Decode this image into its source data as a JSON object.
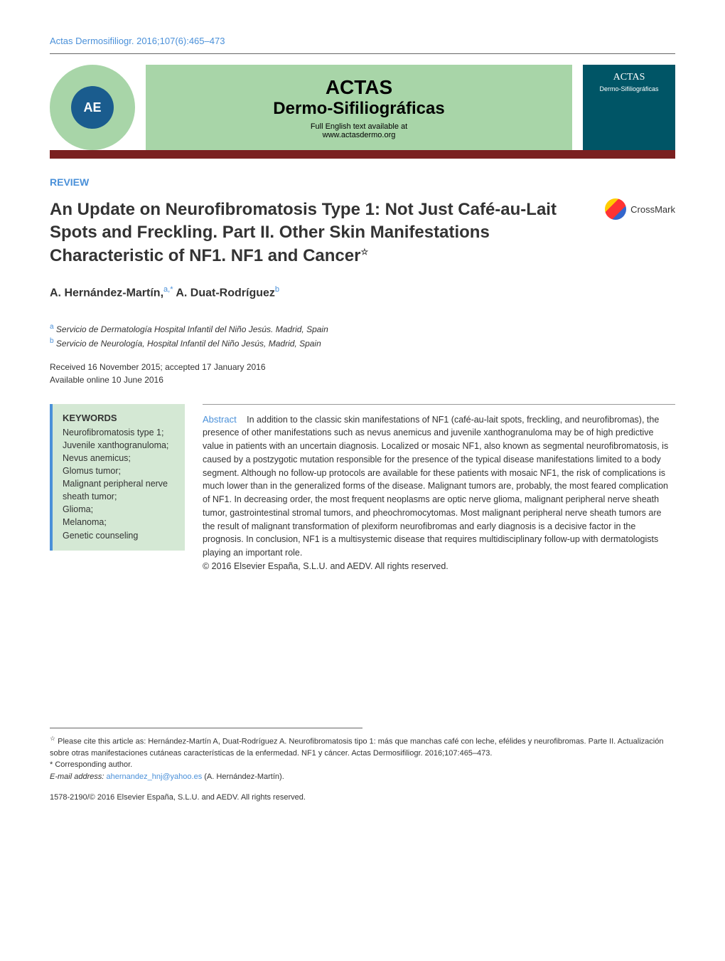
{
  "header": {
    "citation": "Actas Dermosifiliogr. 2016;107(6):465–473",
    "journal_title_line1": "ACTAS",
    "journal_title_line2": "Dermo-Sifiliográficas",
    "journal_subtitle": "Full English text available at",
    "journal_url": "www.actasdermo.org",
    "society_initials": "AE",
    "cover_title": "ACTAS",
    "cover_subtitle": "Dermo-Sifiliográficas"
  },
  "article": {
    "section_label": "REVIEW",
    "title": "An Update on Neurofibromatosis Type 1: Not Just Café-au-Lait Spots and Freckling. Part II. Other Skin Manifestations Characteristic of NF1. NF1 and Cancer",
    "crossmark_label": "CrossMark",
    "authors_html": "A. Hernández-Martín,",
    "author1_sup": "a,*",
    "author2": " A. Duat-Rodríguez",
    "author2_sup": "b",
    "affiliations": [
      {
        "sup": "a",
        "text": "Servicio de Dermatología Hospital Infantil del Niño Jesús. Madrid, Spain"
      },
      {
        "sup": "b",
        "text": "Servicio de Neurología, Hospital Infantil del Niño Jesús, Madrid, Spain"
      }
    ],
    "received": "Received 16 November 2015; accepted 17 January 2016",
    "available": "Available online 10 June 2016"
  },
  "keywords": {
    "heading": "KEYWORDS",
    "list": "Neurofibromatosis type 1;\nJuvenile xanthogranuloma;\nNevus anemicus;\nGlomus tumor;\nMalignant peripheral nerve sheath tumor;\nGlioma;\nMelanoma;\nGenetic counseling"
  },
  "abstract": {
    "label": "Abstract",
    "text": "In addition to the classic skin manifestations of NF1 (café-au-lait spots, freckling, and neurofibromas), the presence of other manifestations such as nevus anemicus and juvenile xanthogranuloma may be of high predictive value in patients with an uncertain diagnosis. Localized or mosaic NF1, also known as segmental neurofibromatosis, is caused by a postzygotic mutation responsible for the presence of the typical disease manifestations limited to a body segment. Although no follow-up protocols are available for these patients with mosaic NF1, the risk of complications is much lower than in the generalized forms of the disease. Malignant tumors are, probably, the most feared complication of NF1. In decreasing order, the most frequent neoplasms are optic nerve glioma, malignant peripheral nerve sheath tumor, gastrointestinal stromal tumors, and pheochromocytomas. Most malignant peripheral nerve sheath tumors are the result of malignant transformation of plexiform neurofibromas and early diagnosis is a decisive factor in the prognosis. In conclusion, NF1 is a multisystemic disease that requires multidisciplinary follow-up with dermatologists playing an important role.",
    "copyright": "© 2016 Elsevier España, S.L.U. and AEDV. All rights reserved."
  },
  "footnotes": {
    "cite_as": "Please cite this article as: Hernández-Martín A, Duat-Rodríguez A. Neurofibromatosis tipo 1: más que manchas café con leche, efélides y neurofibromas. Parte II. Actualización sobre otras manifestaciones cutáneas características de la enfermedad. NF1 y cáncer. Actas Dermosifiliogr. 2016;107:465–473.",
    "corresponding": "Corresponding author.",
    "email_label": "E-mail address:",
    "email": "ahernandez_hnj@yahoo.es",
    "email_author": "(A. Hernández-Martín).",
    "issn": "1578-2190/© 2016 Elsevier España, S.L.U. and AEDV. All rights reserved."
  },
  "colors": {
    "link_blue": "#4a90d9",
    "green_bg": "#a8d5a8",
    "keywords_bg": "#d4e8d4",
    "maroon": "#7a2020",
    "cover_bg": "#005566",
    "society_inner": "#1a5c8e"
  }
}
